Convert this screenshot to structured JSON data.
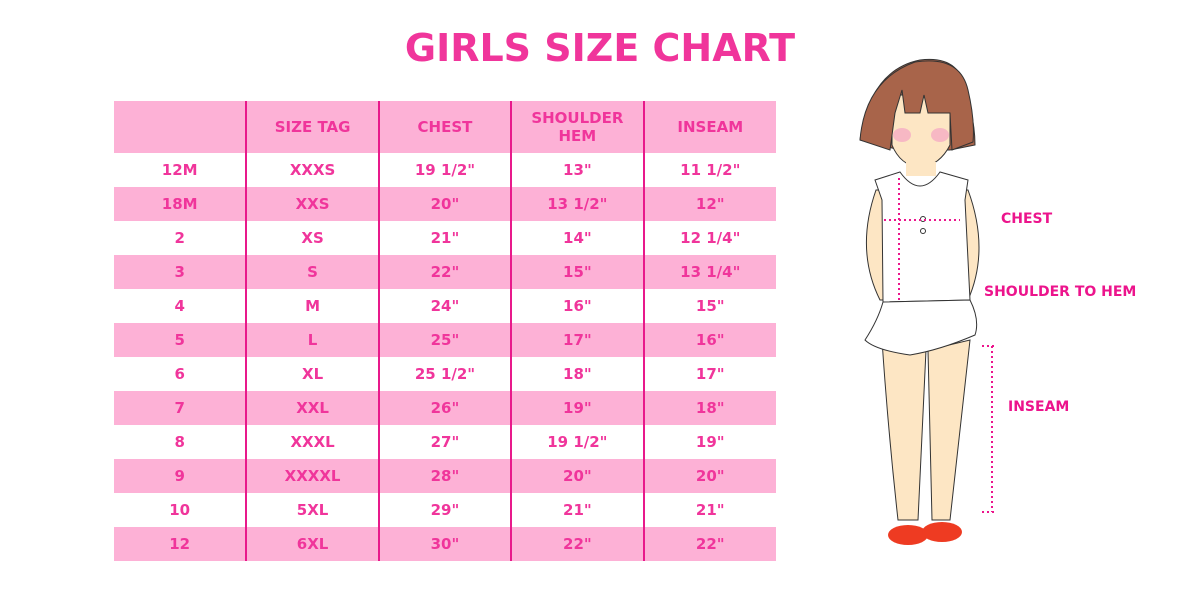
{
  "title": "GIRLS SIZE CHART",
  "colors": {
    "accent": "#f0359b",
    "row_pink": "#fdb1d6",
    "row_white": "#ffffff",
    "divider": "#e8198b"
  },
  "table": {
    "headers": [
      "",
      "SIZE TAG",
      "CHEST",
      "SHOULDER HEM",
      "INSEAM"
    ],
    "rows": [
      [
        "12M",
        "XXXS",
        "19 1/2\"",
        "13\"",
        "11 1/2\""
      ],
      [
        "18M",
        "XXS",
        "20\"",
        "13 1/2\"",
        "12\""
      ],
      [
        "2",
        "XS",
        "21\"",
        "14\"",
        "12 1/4\""
      ],
      [
        "3",
        "S",
        "22\"",
        "15\"",
        "13 1/4\""
      ],
      [
        "4",
        "M",
        "24\"",
        "16\"",
        "15\""
      ],
      [
        "5",
        "L",
        "25\"",
        "17\"",
        "16\""
      ],
      [
        "6",
        "XL",
        "25 1/2\"",
        "18\"",
        "17\""
      ],
      [
        "7",
        "XXL",
        "26\"",
        "19\"",
        "18\""
      ],
      [
        "8",
        "XXXL",
        "27\"",
        "19 1/2\"",
        "19\""
      ],
      [
        "9",
        "XXXXL",
        "28\"",
        "20\"",
        "20\""
      ],
      [
        "10",
        "5XL",
        "29\"",
        "21\"",
        "21\""
      ],
      [
        "12",
        "6XL",
        "30\"",
        "22\"",
        "22\""
      ]
    ]
  },
  "figure": {
    "labels": {
      "chest": "CHEST",
      "shoulder": "SHOULDER TO HEM",
      "inseam": "INSEAM"
    }
  }
}
